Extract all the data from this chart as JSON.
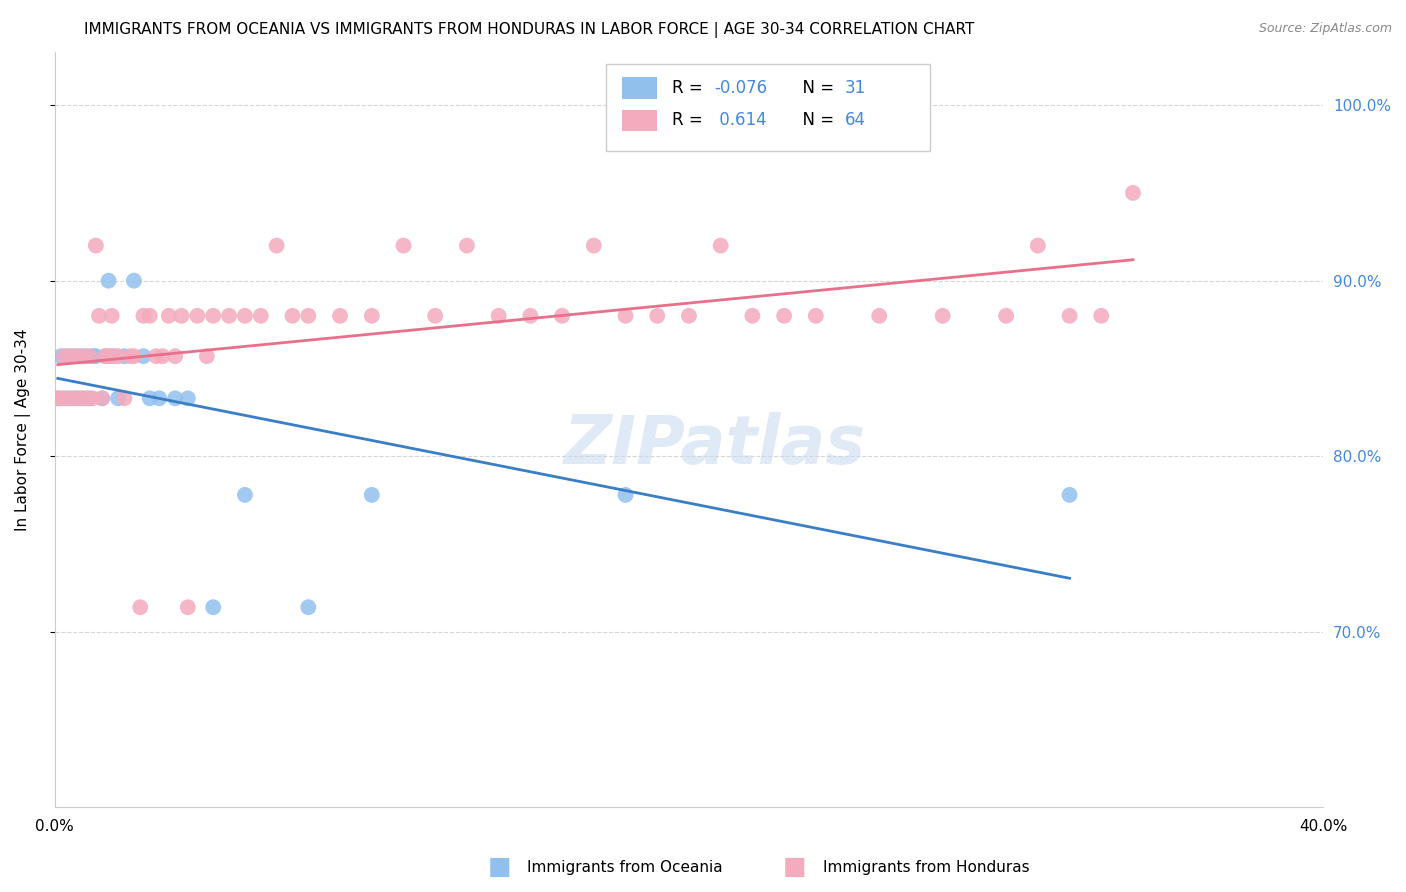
{
  "title": "IMMIGRANTS FROM OCEANIA VS IMMIGRANTS FROM HONDURAS IN LABOR FORCE | AGE 30-34 CORRELATION CHART",
  "source": "Source: ZipAtlas.com",
  "ylabel": "In Labor Force | Age 30-34",
  "xlim": [
    0.0,
    0.4
  ],
  "ylim": [
    0.6,
    1.03
  ],
  "yticks": [
    0.7,
    0.8,
    0.9,
    1.0
  ],
  "ytick_labels": [
    "70.0%",
    "80.0%",
    "90.0%",
    "100.0%"
  ],
  "xticks": [
    0.0,
    0.05,
    0.1,
    0.15,
    0.2,
    0.25,
    0.3,
    0.35,
    0.4
  ],
  "xtick_labels": [
    "0.0%",
    "",
    "",
    "",
    "",
    "",
    "",
    "",
    "40.0%"
  ],
  "oceania_R": -0.076,
  "oceania_N": 31,
  "honduras_R": 0.614,
  "honduras_N": 64,
  "oceania_color": "#92C0ED",
  "honduras_color": "#F4ABBE",
  "trendline_oceania_color": "#3A7EC6",
  "trendline_honduras_color": "#E8708A",
  "background_color": "#ffffff",
  "watermark": "ZIPatlas",
  "oceania_x": [
    0.001,
    0.002,
    0.003,
    0.004,
    0.005,
    0.006,
    0.007,
    0.008,
    0.009,
    0.01,
    0.011,
    0.012,
    0.013,
    0.015,
    0.016,
    0.017,
    0.018,
    0.02,
    0.022,
    0.025,
    0.028,
    0.03,
    0.033,
    0.038,
    0.042,
    0.05,
    0.06,
    0.08,
    0.1,
    0.18,
    0.32
  ],
  "oceania_y": [
    0.833,
    0.857,
    0.833,
    0.857,
    0.833,
    0.857,
    0.833,
    0.857,
    0.833,
    0.857,
    0.833,
    0.857,
    0.857,
    0.833,
    0.857,
    0.9,
    0.857,
    0.833,
    0.857,
    0.9,
    0.857,
    0.833,
    0.833,
    0.833,
    0.833,
    0.714,
    0.778,
    0.714,
    0.778,
    0.778,
    0.778
  ],
  "honduras_x": [
    0.001,
    0.002,
    0.003,
    0.004,
    0.005,
    0.006,
    0.007,
    0.008,
    0.009,
    0.01,
    0.011,
    0.012,
    0.013,
    0.014,
    0.015,
    0.016,
    0.017,
    0.018,
    0.019,
    0.02,
    0.022,
    0.024,
    0.025,
    0.027,
    0.028,
    0.03,
    0.032,
    0.034,
    0.036,
    0.038,
    0.04,
    0.042,
    0.045,
    0.048,
    0.05,
    0.055,
    0.06,
    0.065,
    0.07,
    0.075,
    0.08,
    0.09,
    0.1,
    0.11,
    0.12,
    0.13,
    0.14,
    0.15,
    0.16,
    0.17,
    0.18,
    0.19,
    0.2,
    0.21,
    0.22,
    0.23,
    0.24,
    0.26,
    0.28,
    0.3,
    0.31,
    0.32,
    0.33,
    0.34
  ],
  "honduras_y": [
    0.833,
    0.833,
    0.857,
    0.833,
    0.857,
    0.833,
    0.857,
    0.833,
    0.857,
    0.833,
    0.857,
    0.833,
    0.92,
    0.88,
    0.833,
    0.857,
    0.857,
    0.88,
    0.857,
    0.857,
    0.833,
    0.857,
    0.857,
    0.714,
    0.88,
    0.88,
    0.857,
    0.857,
    0.88,
    0.857,
    0.88,
    0.714,
    0.88,
    0.857,
    0.88,
    0.88,
    0.88,
    0.88,
    0.92,
    0.88,
    0.88,
    0.88,
    0.88,
    0.92,
    0.88,
    0.92,
    0.88,
    0.88,
    0.88,
    0.92,
    0.88,
    0.88,
    0.88,
    0.92,
    0.88,
    0.88,
    0.88,
    0.88,
    0.88,
    0.88,
    0.92,
    0.88,
    0.88,
    0.95
  ]
}
